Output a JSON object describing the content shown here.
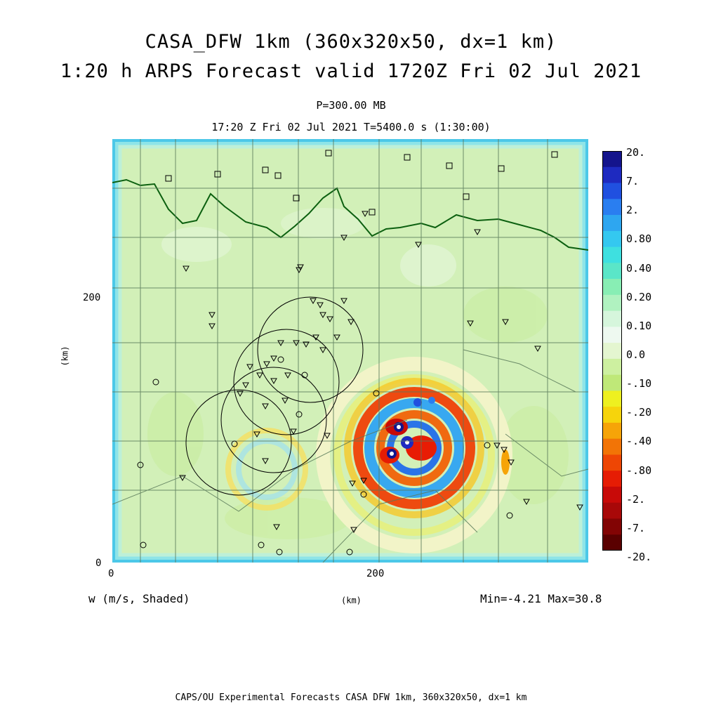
{
  "titles": {
    "line1": "CASA_DFW 1km (360x320x50, dx=1 km)",
    "line2": "1:20 h ARPS Forecast valid 1720Z Fri 02 Jul 2021",
    "level": "P=300.00 MB",
    "time": "17:20 Z Fri 02 Jul 2021    T=5400.0 s (1:30:00)"
  },
  "axes": {
    "x_ticks": [
      "0",
      "200"
    ],
    "y_ticks": [
      "0",
      "200"
    ],
    "x_label": "(km)",
    "y_label": "(km)",
    "x_range": [
      0,
      360
    ],
    "y_range": [
      0,
      320
    ]
  },
  "field": {
    "name": "w (m/s, Shaded)",
    "minmax": "Min=-4.21 Max=30.8"
  },
  "colorbar": {
    "labels": [
      "20.",
      "7.",
      "2.",
      "0.80",
      "0.40",
      "0.20",
      "0.10",
      "0.0",
      "-.10",
      "-.20",
      "-.40",
      "-.80",
      "-2.",
      "-7.",
      "-20."
    ],
    "colors": [
      "#14148c",
      "#1e2ac0",
      "#2050e0",
      "#2a7ef0",
      "#2ea6f0",
      "#34c8f0",
      "#3ee0e0",
      "#5ae6c8",
      "#88eeb4",
      "#b0f2c0",
      "#d6f6dc",
      "#eef9f0",
      "#e4f6d0",
      "#cdf0a0",
      "#bfe878",
      "#eef020",
      "#f6d40c",
      "#f6a408",
      "#f27406",
      "#ee4604",
      "#e61c04",
      "#c80a08",
      "#a80808",
      "#820404",
      "#5a0000"
    ]
  },
  "footer": "CAPS/OU Experimental Forecasts  CASA DFW 1km, 360x320x50, dx=1 km",
  "colors": {
    "background_field": "#d4f2bc",
    "border": "#0c6010",
    "county_lines": "#5a7a5a"
  }
}
